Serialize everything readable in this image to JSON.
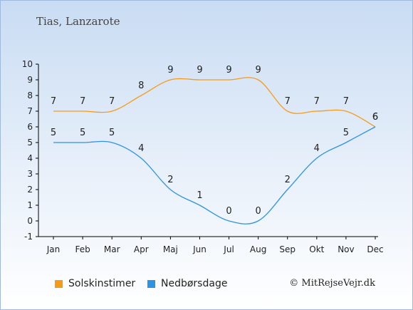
{
  "chart_data": {
    "type": "line",
    "title": "Tias, Lanzarote",
    "categories": [
      "Jan",
      "Feb",
      "Mar",
      "Apr",
      "Maj",
      "Jun",
      "Jul",
      "Aug",
      "Sep",
      "Okt",
      "Nov",
      "Dec"
    ],
    "ylim": [
      -1,
      10
    ],
    "yticks": [
      -1,
      0,
      1,
      2,
      3,
      4,
      5,
      6,
      7,
      8,
      9,
      10
    ],
    "grid": false,
    "legend_position": "bottom-left",
    "series": [
      {
        "name": "Solskinstimer",
        "color": "#f59b1a",
        "values": [
          7,
          7,
          7,
          8,
          9,
          9,
          9,
          9,
          7,
          7,
          7,
          6
        ]
      },
      {
        "name": "Nedbørsdage",
        "color": "#2e93e3",
        "values": [
          5,
          5,
          5,
          4,
          2,
          1,
          0,
          0,
          2,
          4,
          5,
          6
        ]
      }
    ]
  },
  "credit": "© MitRejseVejr.dk"
}
